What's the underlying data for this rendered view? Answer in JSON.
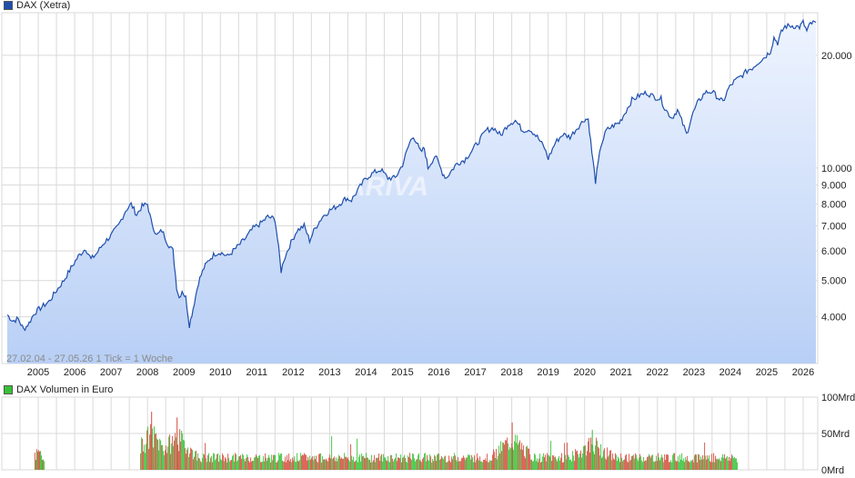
{
  "colors": {
    "price_line": "#1f4fad",
    "price_fill_top": "#eef4ff",
    "price_fill_bottom": "#b8cff5",
    "volume_up": "#36c236",
    "volume_down": "#d64b3c",
    "grid": "#d9d9d9",
    "price_swatch": "#1f4fad",
    "volume_swatch": "#36c236"
  },
  "chart_data": [
    {
      "type": "line",
      "legend": "DAX (Xetra)",
      "scale": "log",
      "ylim": [
        3000,
        26000
      ],
      "xlim": [
        2004.0,
        2026.4
      ],
      "y_ticks": [
        {
          "value": 4000,
          "label": "4.000"
        },
        {
          "value": 5000,
          "label": "5.000"
        },
        {
          "value": 6000,
          "label": "6.000"
        },
        {
          "value": 7000,
          "label": "7.000"
        },
        {
          "value": 8000,
          "label": "8.000"
        },
        {
          "value": 9000,
          "label": "9.000"
        },
        {
          "value": 10000,
          "label": "10.000"
        },
        {
          "value": 20000,
          "label": "20.000"
        }
      ],
      "x_ticks": [
        "2005",
        "2006",
        "2007",
        "2008",
        "2009",
        "2010",
        "2011",
        "2012",
        "2013",
        "2014",
        "2015",
        "2016",
        "2017",
        "2018",
        "2019",
        "2020",
        "2021",
        "2022",
        "2023",
        "2024",
        "2025",
        "2026"
      ],
      "info": "27.02.04 - 27.05.26    1 Tick = 1 Woche",
      "series": [
        {
          "x": [
            2004.15,
            2004.3,
            2004.45,
            2004.6,
            2004.75,
            2004.9,
            2005.1,
            2005.3,
            2005.5,
            2005.7,
            2005.9,
            2006.1,
            2006.3,
            2006.45,
            2006.6,
            2006.8,
            2007.0,
            2007.2,
            2007.4,
            2007.55,
            2007.7,
            2007.85,
            2008.0,
            2008.1,
            2008.25,
            2008.4,
            2008.55,
            2008.7,
            2008.8,
            2008.87,
            2008.95,
            2009.05,
            2009.15,
            2009.25,
            2009.4,
            2009.55,
            2009.7,
            2009.85,
            2010.0,
            2010.2,
            2010.35,
            2010.5,
            2010.7,
            2010.9,
            2011.1,
            2011.3,
            2011.5,
            2011.6,
            2011.67,
            2011.75,
            2011.9,
            2012.1,
            2012.3,
            2012.45,
            2012.6,
            2012.8,
            2013.0,
            2013.2,
            2013.45,
            2013.6,
            2013.8,
            2014.0,
            2014.2,
            2014.4,
            2014.6,
            2014.8,
            2015.0,
            2015.2,
            2015.3,
            2015.5,
            2015.6,
            2015.7,
            2015.9,
            2016.1,
            2016.2,
            2016.4,
            2016.5,
            2016.7,
            2016.9,
            2017.1,
            2017.3,
            2017.5,
            2017.7,
            2017.9,
            2018.1,
            2018.3,
            2018.5,
            2018.7,
            2018.9,
            2019.0,
            2019.2,
            2019.4,
            2019.6,
            2019.8,
            2020.0,
            2020.1,
            2020.2,
            2020.3,
            2020.45,
            2020.6,
            2020.8,
            2020.95,
            2021.1,
            2021.3,
            2021.5,
            2021.7,
            2021.9,
            2022.1,
            2022.2,
            2022.4,
            2022.55,
            2022.7,
            2022.8,
            2022.95,
            2023.1,
            2023.3,
            2023.5,
            2023.7,
            2023.8,
            2023.95,
            2024.1,
            2024.3,
            2024.5,
            2024.6,
            2024.8,
            2024.95,
            2025.1,
            2025.2,
            2025.3,
            2025.4,
            2025.5,
            2025.7,
            2025.9,
            2026.0,
            2026.1,
            2026.2,
            2026.35
          ],
          "y": [
            4050,
            3900,
            3950,
            3700,
            3850,
            4100,
            4250,
            4400,
            4700,
            5000,
            5400,
            5800,
            6100,
            5700,
            5900,
            6300,
            6600,
            7000,
            7700,
            8000,
            7500,
            7900,
            8000,
            7200,
            6600,
            6800,
            6300,
            6000,
            4800,
            4500,
            4700,
            4500,
            3800,
            4200,
            4950,
            5400,
            5700,
            5900,
            5950,
            5800,
            6000,
            6200,
            6500,
            6900,
            7100,
            7400,
            7300,
            6100,
            5300,
            5700,
            6200,
            6800,
            7000,
            6400,
            6900,
            7400,
            7700,
            7900,
            8300,
            8200,
            8800,
            9400,
            9700,
            9900,
            9400,
            9400,
            10200,
            11700,
            12200,
            11000,
            11300,
            10000,
            10800,
            9700,
            9400,
            10000,
            10300,
            10500,
            11100,
            11800,
            12600,
            12800,
            12200,
            13100,
            13400,
            12600,
            12700,
            12100,
            11300,
            10600,
            11700,
            12300,
            12100,
            12800,
            13500,
            13500,
            11000,
            9200,
            11500,
            12600,
            13000,
            13200,
            14000,
            15200,
            15600,
            15900,
            15500,
            15300,
            14400,
            13600,
            14300,
            13100,
            12300,
            13800,
            14900,
            15900,
            16000,
            15300,
            15000,
            16300,
            17000,
            17600,
            18300,
            18500,
            19300,
            19800,
            20500,
            22300,
            21600,
            23000,
            23900,
            24000,
            23800,
            24500,
            23200,
            24300,
            24500
          ],
          "name": ""
        }
      ]
    },
    {
      "type": "bar",
      "legend": "DAX Volumen in Euro",
      "ylim": [
        0,
        100
      ],
      "y_ticks": [
        {
          "value": 0,
          "label": "0Mrd"
        },
        {
          "value": 50,
          "label": "50Mrd"
        },
        {
          "value": 100,
          "label": "100Mrd"
        }
      ],
      "segments": [
        {
          "x": [
            2004.9,
            2005.15
          ],
          "level": 22,
          "peak": 35
        },
        {
          "x": [
            2007.8,
            2024.2
          ],
          "level": 18,
          "peak": 80
        }
      ],
      "notable_peaks": [
        {
          "x": 2008.1,
          "value": 80
        },
        {
          "x": 2008.8,
          "value": 72
        },
        {
          "x": 2018.0,
          "value": 65
        },
        {
          "x": 2020.2,
          "value": 55
        }
      ]
    }
  ]
}
